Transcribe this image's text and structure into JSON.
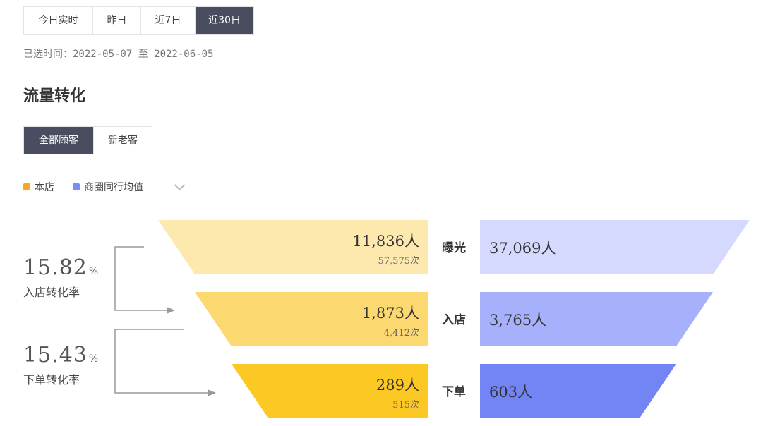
{
  "time_tabs": [
    {
      "label": "今日实时",
      "active": false
    },
    {
      "label": "昨日",
      "active": false
    },
    {
      "label": "近7日",
      "active": false
    },
    {
      "label": "近30日",
      "active": true
    }
  ],
  "selected_range": "已选时间：2022-05-07 至 2022-06-05",
  "section_title": "流量转化",
  "customer_tabs": [
    {
      "label": "全部顾客",
      "active": true
    },
    {
      "label": "新老客",
      "active": false
    }
  ],
  "legend": [
    {
      "label": "本店",
      "color": "#f5a623"
    },
    {
      "label": "商圈同行均值",
      "color": "#7b8cf2"
    }
  ],
  "rates": [
    {
      "value": "15.82",
      "unit": "%",
      "label": "入店转化率"
    },
    {
      "value": "15.43",
      "unit": "%",
      "label": "下单转化率"
    }
  ],
  "chart_data": {
    "type": "funnel",
    "stages": [
      "曝光",
      "入店",
      "下单"
    ],
    "series": [
      {
        "name": "本店",
        "values": [
          11836,
          1873,
          289
        ],
        "labels": [
          "11,836人",
          "1,873人",
          "289人"
        ],
        "sub_labels": [
          "57,575次",
          "4,412次",
          "515次"
        ],
        "colors": [
          "#fde9ae",
          "#fcd870",
          "#fcc823"
        ]
      },
      {
        "name": "商圈同行均值",
        "values": [
          37069,
          3765,
          603
        ],
        "labels": [
          "37,069人",
          "3,765人",
          "603人"
        ],
        "colors": [
          "#d4d9fd",
          "#a6b0fb",
          "#7384f4"
        ]
      }
    ]
  }
}
